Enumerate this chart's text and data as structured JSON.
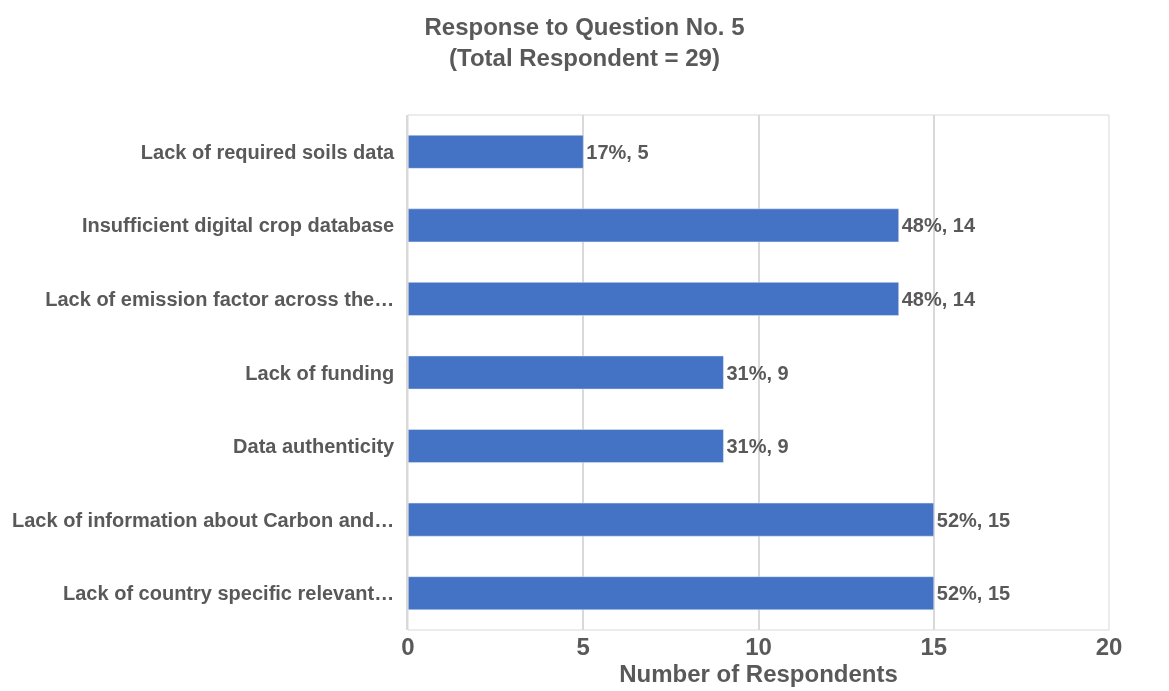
{
  "chart_data": {
    "type": "bar",
    "orientation": "horizontal",
    "title": "Response to Question No. 5\n(Total Respondent = 29)",
    "xlabel": "Number of Respondents",
    "categories": [
      "Lack of required soils data",
      "Insufficient digital crop database",
      "Lack of emission factor across the…",
      "Lack of funding",
      "Data authenticity",
      "Lack of information about Carbon and…",
      "Lack of country specific relevant…"
    ],
    "values": [
      5,
      14,
      14,
      9,
      9,
      15,
      15
    ],
    "value_labels": [
      "17%, 5",
      "48%, 14",
      "48%, 14",
      "31%, 9",
      "31%, 9",
      "52%, 15",
      "52%, 15"
    ],
    "color": "#4472c4",
    "xlim": [
      0,
      20
    ],
    "xticks": [
      0,
      5,
      10,
      15,
      20
    ],
    "grid": "x"
  }
}
